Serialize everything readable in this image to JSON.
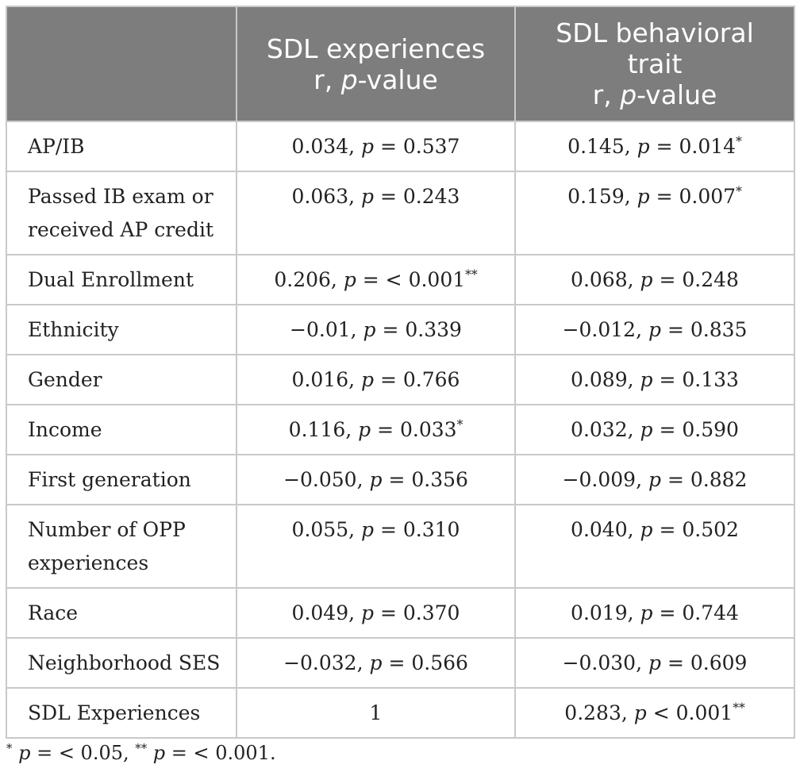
{
  "table": {
    "header": {
      "corner": "",
      "col1_line1": "SDL experiences",
      "col1_line2_prefix": "r, ",
      "col1_line2_italic": "p",
      "col1_line2_suffix": "-value",
      "col2_line1": "SDL behavioral",
      "col2_line2": "trait",
      "col2_line3_prefix": "r, ",
      "col2_line3_italic": "p",
      "col2_line3_suffix": "-value"
    },
    "rows": [
      {
        "label": "AP/IB",
        "c1": "0.034, p = 0.537",
        "c2": "0.145, p = 0.014*"
      },
      {
        "label": "Passed IB exam or received AP credit",
        "c1": "0.063, p = 0.243",
        "c2": "0.159, p = 0.007*"
      },
      {
        "label": "Dual Enrollment",
        "c1": "0.206, p = < 0.001**",
        "c2": "0.068, p = 0.248"
      },
      {
        "label": "Ethnicity",
        "c1": "−0.01, p = 0.339",
        "c2": "−0.012, p = 0.835"
      },
      {
        "label": "Gender",
        "c1": "0.016, p = 0.766",
        "c2": "0.089, p = 0.133"
      },
      {
        "label": "Income",
        "c1": "0.116, p = 0.033*",
        "c2": "0.032, p = 0.590"
      },
      {
        "label": "First generation",
        "c1": "−0.050, p = 0.356",
        "c2": "−0.009, p = 0.882"
      },
      {
        "label": "Number of OPP experiences",
        "c1": "0.055, p = 0.310",
        "c2": "0.040, p = 0.502"
      },
      {
        "label": "Race",
        "c1": "0.049, p = 0.370",
        "c2": "0.019, p = 0.744"
      },
      {
        "label": "Neighborhood SES",
        "c1": "−0.032, p = 0.566",
        "c2": "−0.030, p = 0.609"
      },
      {
        "label": "SDL Experiences",
        "c1": "1",
        "c2": "0.283, p < 0.001**"
      }
    ]
  },
  "footnote": "* p = < 0.05, ** p = < 0.001."
}
